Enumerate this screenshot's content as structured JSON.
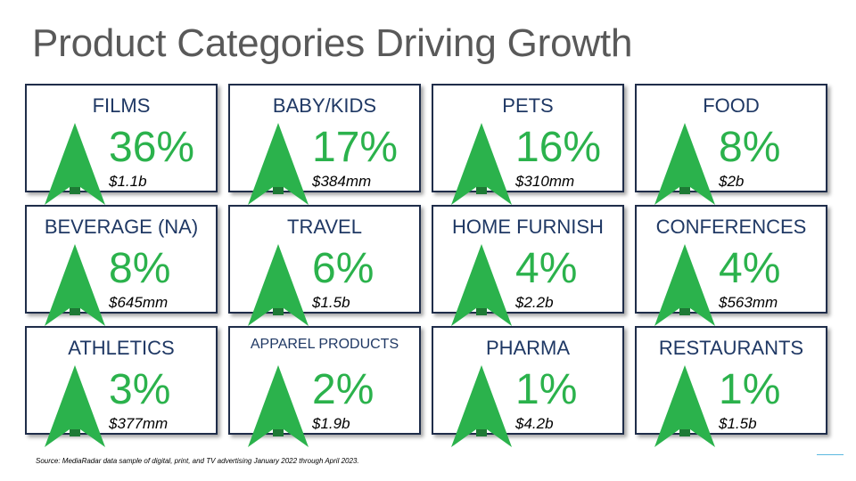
{
  "title": "Product Categories Driving Growth",
  "colors": {
    "arrow": "#2bb24c",
    "arrow_shade": "#1e7a35",
    "label": "#1f3864",
    "percent": "#2bb24c",
    "border": "#1f2d4a"
  },
  "icon": "up-arrow-icon",
  "cards": [
    {
      "label": "FILMS",
      "percent": "36%",
      "amount": "$1.1b"
    },
    {
      "label": "BABY/KIDS",
      "percent": "17%",
      "amount": "$384mm"
    },
    {
      "label": "PETS",
      "percent": "16%",
      "amount": "$310mm"
    },
    {
      "label": "FOOD",
      "percent": "8%",
      "amount": "$2b"
    },
    {
      "label": "BEVERAGE (NA)",
      "percent": "8%",
      "amount": "$645mm"
    },
    {
      "label": "TRAVEL",
      "percent": "6%",
      "amount": "$1.5b"
    },
    {
      "label": "HOME FURNISH",
      "percent": "4%",
      "amount": "$2.2b"
    },
    {
      "label": "CONFERENCES",
      "percent": "4%",
      "amount": "$563mm"
    },
    {
      "label": "ATHLETICS",
      "percent": "3%",
      "amount": "$377mm"
    },
    {
      "label": "APPAREL PRODUCTS",
      "percent": "2%",
      "amount": "$1.9b"
    },
    {
      "label": "PHARMA",
      "percent": "1%",
      "amount": "$4.2b"
    },
    {
      "label": "RESTAURANTS",
      "percent": "1%",
      "amount": "$1.5b"
    }
  ],
  "source": "Source: MediaRadar data sample of digital, print, and TV advertising January 2022 through April 2023."
}
